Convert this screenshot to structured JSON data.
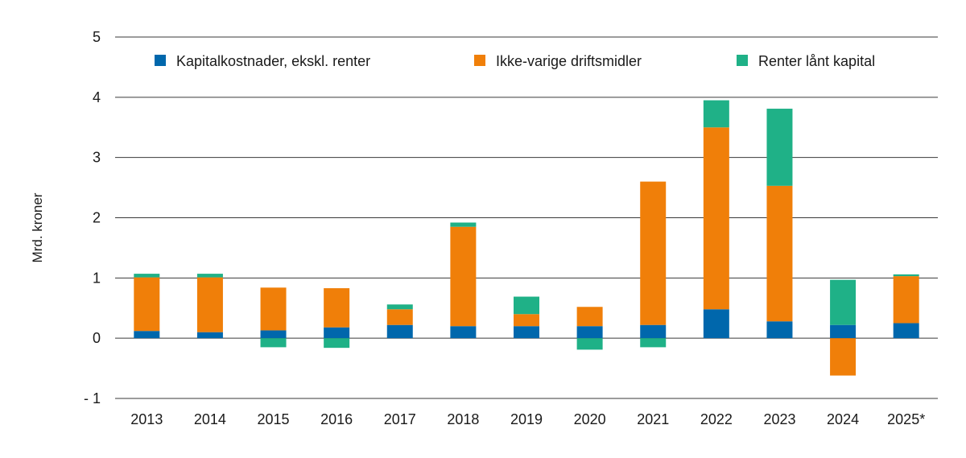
{
  "chart_data": {
    "type": "bar",
    "stacked": true,
    "title": "",
    "xlabel": "",
    "ylabel": "Mrd. kroner",
    "ylim": [
      -1,
      5
    ],
    "yticks": [
      5,
      4,
      3,
      2,
      1,
      0,
      -1
    ],
    "ytick_labels": [
      "5",
      "4",
      "3",
      "2",
      "1",
      "0",
      "- 1"
    ],
    "categories": [
      "2013",
      "2014",
      "2015",
      "2016",
      "2017",
      "2018",
      "2019",
      "2020",
      "2021",
      "2022",
      "2023",
      "2024",
      "2025*"
    ],
    "series": [
      {
        "name": "Kapitalkostnader, ekskl. renter",
        "color": "#0067ac",
        "values": [
          0.12,
          0.1,
          0.13,
          0.18,
          0.22,
          0.2,
          0.2,
          0.2,
          0.22,
          0.48,
          0.28,
          0.22,
          0.25
        ]
      },
      {
        "name": "Ikke-varige driftsmidler",
        "color": "#f07f09",
        "values": [
          0.89,
          0.91,
          0.71,
          0.65,
          0.26,
          1.65,
          0.2,
          0.32,
          2.38,
          3.02,
          2.25,
          -0.62,
          0.78
        ]
      },
      {
        "name": "Renter lånt kapital",
        "color": "#1fb187",
        "values": [
          0.06,
          0.06,
          -0.15,
          -0.16,
          0.08,
          0.07,
          0.29,
          -0.19,
          -0.15,
          0.45,
          1.28,
          0.75,
          0.03
        ]
      }
    ],
    "legend": "top",
    "grid": true
  }
}
